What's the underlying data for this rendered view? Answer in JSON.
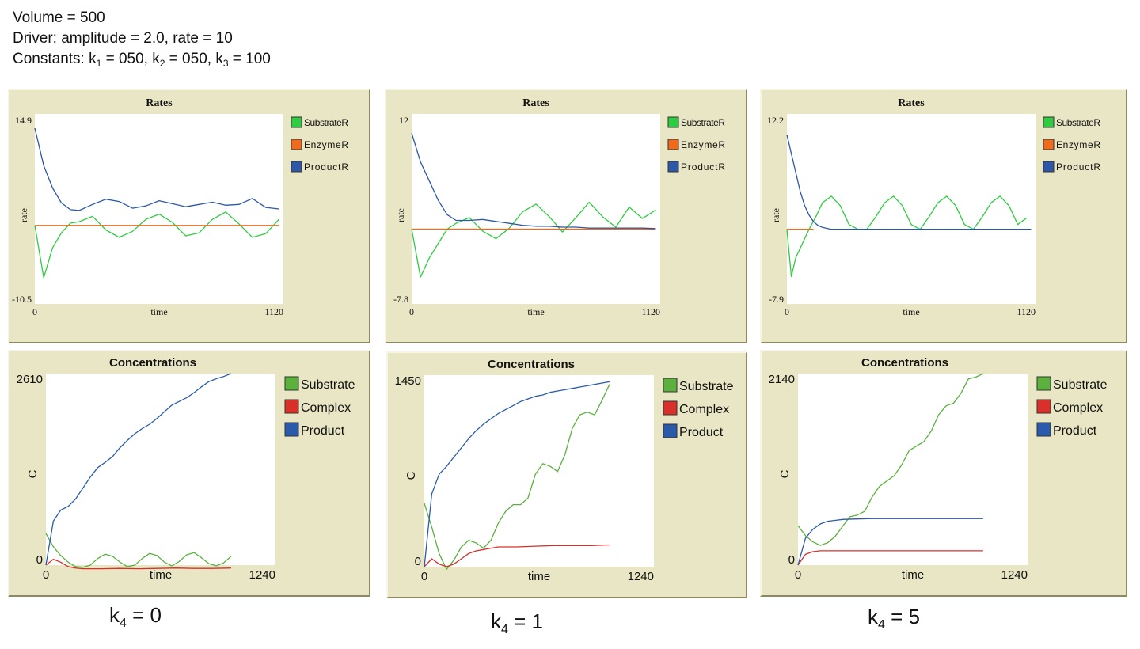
{
  "header": {
    "volume": "Volume = 500",
    "driver": "Driver: amplitude = 2.0, rate = 10",
    "constants_prefix": "Constants: k",
    "constants_mid1": " = 050, k",
    "constants_mid2": " = 050, k",
    "constants_end": " = 100",
    "sub1": "1",
    "sub2": "2",
    "sub3": "3"
  },
  "labels": [
    {
      "k": "k",
      "sub": "4",
      "value": " = 0"
    },
    {
      "k": "k",
      "sub": "4",
      "value": " = 1"
    },
    {
      "k": "k",
      "sub": "4",
      "value": " = 5"
    }
  ],
  "colors": {
    "panel_bg": "#e8e6c4",
    "green": "#2ecc40",
    "orange": "#f06a1a",
    "blue": "#2d57a8",
    "c_green": "#5bb03e",
    "c_red": "#d9302a",
    "c_blue": "#2a5bab"
  },
  "chart_data": [
    {
      "type": "line",
      "title": "Rates",
      "xlabel": "time",
      "ylabel": "rate",
      "xlim": [
        0,
        1120
      ],
      "ylim": [
        -10.5,
        14.9
      ],
      "x_ticks": [
        "0",
        "1120"
      ],
      "y_ticks": [
        "14.9",
        "-10.5"
      ],
      "legend": "right",
      "series": [
        {
          "name": "SubstrateR",
          "color": "#2ecc40",
          "x": [
            0,
            40,
            80,
            120,
            160,
            200,
            260,
            320,
            380,
            440,
            500,
            560,
            620,
            680,
            740,
            800,
            860,
            920,
            980,
            1040,
            1100
          ],
          "y": [
            0,
            -7,
            -3,
            -1,
            0.3,
            0.5,
            1.2,
            -0.6,
            -1.6,
            -0.8,
            0.8,
            1.5,
            0.4,
            -1.4,
            -1,
            0.8,
            1.8,
            0.2,
            -1.6,
            -1.1,
            0.8
          ]
        },
        {
          "name": "EnzymeR",
          "color": "#f06a1a",
          "x": [
            0,
            1100
          ],
          "y": [
            0,
            0
          ]
        },
        {
          "name": "ProductR",
          "color": "#2d57a8",
          "x": [
            0,
            40,
            80,
            120,
            160,
            200,
            260,
            320,
            380,
            440,
            500,
            560,
            620,
            680,
            740,
            800,
            860,
            920,
            980,
            1040,
            1100
          ],
          "y": [
            13,
            8,
            5,
            3,
            2.1,
            2,
            2.8,
            3.5,
            3.2,
            2.3,
            2.6,
            3.3,
            2.9,
            2.5,
            2.8,
            3.1,
            2.7,
            2.8,
            3.6,
            2.4,
            2.2
          ]
        }
      ]
    },
    {
      "type": "line",
      "title": "Rates",
      "xlabel": "time",
      "ylabel": "rate",
      "xlim": [
        0,
        1120
      ],
      "ylim": [
        -7.8,
        12
      ],
      "x_ticks": [
        "0",
        "1120"
      ],
      "y_ticks": [
        "12",
        "-7.8"
      ],
      "legend": "right",
      "series": [
        {
          "name": "SubstrateR",
          "color": "#2ecc40",
          "x": [
            0,
            40,
            80,
            120,
            160,
            200,
            260,
            320,
            380,
            440,
            500,
            560,
            620,
            680,
            740,
            800,
            860,
            920,
            980,
            1040,
            1100
          ],
          "y": [
            0,
            -5,
            -3,
            -1.5,
            0,
            0.6,
            1.2,
            -0.2,
            -1,
            0.1,
            1.8,
            2.6,
            1.3,
            -0.3,
            1.2,
            2.8,
            1.3,
            0.2,
            2.3,
            1.1,
            2
          ]
        },
        {
          "name": "EnzymeR",
          "color": "#f06a1a",
          "x": [
            0,
            1100
          ],
          "y": [
            0,
            0
          ]
        },
        {
          "name": "ProductR",
          "color": "#2d57a8",
          "x": [
            0,
            40,
            80,
            120,
            160,
            200,
            260,
            320,
            380,
            440,
            500,
            560,
            620,
            680,
            740,
            800,
            860,
            920,
            980,
            1040,
            1100
          ],
          "y": [
            10,
            7,
            5,
            3,
            1.5,
            0.9,
            0.9,
            1,
            0.8,
            0.6,
            0.4,
            0.3,
            0.3,
            0.2,
            0.2,
            0.1,
            0.1,
            0.1,
            0.1,
            0.1,
            0.05
          ]
        }
      ]
    },
    {
      "type": "line",
      "title": "Rates",
      "xlabel": "time",
      "ylabel": "rate",
      "xlim": [
        0,
        1120
      ],
      "ylim": [
        -7.9,
        12.2
      ],
      "x_ticks": [
        "0",
        "1120"
      ],
      "y_ticks": [
        "12.2",
        "-7.9"
      ],
      "legend": "right",
      "series": [
        {
          "name": "SubstrateR",
          "color": "#2ecc40",
          "x": [
            0,
            20,
            40,
            60,
            80,
            100,
            130,
            160,
            200,
            240,
            280,
            320,
            360,
            400,
            440,
            480,
            520,
            560,
            600,
            640,
            680,
            720,
            760,
            800,
            840,
            880,
            920,
            960,
            1000,
            1040,
            1080
          ],
          "y": [
            0,
            -5,
            -3,
            -2,
            -1,
            0,
            1.3,
            2.8,
            3.5,
            2.5,
            0.5,
            0,
            0,
            1.3,
            2.8,
            3.5,
            2.5,
            0.5,
            0,
            1.3,
            2.8,
            3.5,
            2.5,
            0.5,
            0,
            1.3,
            2.8,
            3.5,
            2.5,
            0.5,
            1.2
          ]
        },
        {
          "name": "EnzymeR",
          "color": "#f06a1a",
          "x": [
            0,
            120
          ],
          "y": [
            0,
            0
          ]
        },
        {
          "name": "ProductR",
          "color": "#2d57a8",
          "x": [
            0,
            20,
            40,
            60,
            80,
            100,
            120,
            140,
            160,
            200,
            1100
          ],
          "y": [
            10,
            8,
            6,
            4,
            2.5,
            1.5,
            0.8,
            0.4,
            0.2,
            0,
            0
          ]
        }
      ]
    },
    {
      "type": "line",
      "title": "Concentrations",
      "xlabel": "time",
      "ylabel": "C",
      "xlim": [
        0,
        1240
      ],
      "ylim": [
        0,
        2610
      ],
      "x_ticks": [
        "0",
        "time",
        "1240"
      ],
      "y_ticks": [
        "2610",
        "0"
      ],
      "legend": "right",
      "series": [
        {
          "name": "Substrate",
          "color": "#5bb03e",
          "x": [
            0,
            40,
            80,
            120,
            160,
            200,
            240,
            280,
            320,
            360,
            400,
            440,
            480,
            520,
            560,
            600,
            640,
            680,
            720,
            760,
            800,
            840,
            880,
            920,
            960,
            1000
          ],
          "y": [
            430,
            250,
            130,
            40,
            -20,
            -30,
            0,
            90,
            150,
            120,
            40,
            -20,
            0,
            90,
            160,
            130,
            40,
            -10,
            50,
            140,
            170,
            100,
            20,
            -10,
            30,
            120
          ]
        },
        {
          "name": "Complex",
          "color": "#d9302a",
          "x": [
            0,
            40,
            80,
            120,
            160,
            200,
            300,
            400,
            500,
            600,
            700,
            800,
            900,
            1000
          ],
          "y": [
            0,
            80,
            40,
            -20,
            -40,
            -50,
            -50,
            -45,
            -50,
            -45,
            -40,
            -45,
            -45,
            -40
          ]
        },
        {
          "name": "Product",
          "color": "#2a5bab",
          "x": [
            0,
            40,
            80,
            120,
            160,
            200,
            240,
            280,
            320,
            360,
            400,
            440,
            480,
            520,
            560,
            600,
            640,
            680,
            720,
            760,
            800,
            840,
            880,
            920,
            960,
            1000
          ],
          "y": [
            0,
            600,
            750,
            800,
            900,
            1050,
            1200,
            1330,
            1400,
            1480,
            1600,
            1700,
            1790,
            1860,
            1920,
            2000,
            2090,
            2180,
            2230,
            2280,
            2350,
            2430,
            2500,
            2540,
            2570,
            2610
          ]
        }
      ]
    },
    {
      "type": "line",
      "title": "Concentrations",
      "xlabel": "time",
      "ylabel": "C",
      "xlim": [
        0,
        1240
      ],
      "ylim": [
        0,
        1450
      ],
      "x_ticks": [
        "0",
        "time",
        "1240"
      ],
      "y_ticks": [
        "1450",
        "0"
      ],
      "legend": "right",
      "series": [
        {
          "name": "Substrate",
          "color": "#5bb03e",
          "x": [
            0,
            40,
            80,
            120,
            160,
            200,
            240,
            280,
            320,
            360,
            400,
            440,
            480,
            520,
            560,
            600,
            640,
            680,
            720,
            760,
            800,
            840,
            880,
            920,
            960,
            1000
          ],
          "y": [
            480,
            300,
            100,
            -20,
            50,
            150,
            200,
            180,
            140,
            200,
            330,
            420,
            470,
            470,
            520,
            700,
            780,
            760,
            720,
            850,
            1050,
            1150,
            1170,
            1150,
            1260,
            1380
          ]
        },
        {
          "name": "Complex",
          "color": "#d9302a",
          "x": [
            0,
            40,
            80,
            120,
            160,
            200,
            240,
            280,
            320,
            360,
            400,
            500,
            600,
            700,
            800,
            900,
            1000
          ],
          "y": [
            0,
            60,
            20,
            0,
            20,
            60,
            100,
            120,
            130,
            140,
            150,
            150,
            155,
            160,
            160,
            160,
            165
          ]
        },
        {
          "name": "Product",
          "color": "#2a5bab",
          "x": [
            0,
            40,
            80,
            120,
            160,
            200,
            240,
            280,
            320,
            360,
            400,
            440,
            480,
            520,
            560,
            600,
            640,
            680,
            720,
            760,
            800,
            840,
            880,
            920,
            960,
            1000
          ],
          "y": [
            0,
            550,
            700,
            760,
            830,
            900,
            970,
            1030,
            1080,
            1120,
            1160,
            1190,
            1220,
            1250,
            1270,
            1290,
            1300,
            1320,
            1330,
            1340,
            1350,
            1360,
            1370,
            1380,
            1390,
            1400
          ]
        }
      ]
    },
    {
      "type": "line",
      "title": "Concentrations",
      "xlabel": "time",
      "ylabel": "C",
      "xlim": [
        0,
        1240
      ],
      "ylim": [
        0,
        2140
      ],
      "x_ticks": [
        "0",
        "time",
        "1240"
      ],
      "y_ticks": [
        "2140",
        "0"
      ],
      "legend": "right",
      "series": [
        {
          "name": "Substrate",
          "color": "#5bb03e",
          "x": [
            0,
            40,
            80,
            120,
            160,
            200,
            240,
            280,
            320,
            360,
            400,
            440,
            480,
            520,
            560,
            600,
            640,
            680,
            720,
            760,
            800,
            840,
            880,
            920,
            960,
            1000
          ],
          "y": [
            440,
            330,
            260,
            220,
            250,
            320,
            430,
            540,
            560,
            600,
            760,
            880,
            940,
            1000,
            1120,
            1280,
            1330,
            1380,
            1500,
            1680,
            1780,
            1810,
            1920,
            2080,
            2100,
            2140
          ]
        },
        {
          "name": "Complex",
          "color": "#d9302a",
          "x": [
            0,
            40,
            80,
            120,
            160,
            200,
            400,
            600,
            800,
            1000
          ],
          "y": [
            0,
            120,
            150,
            160,
            160,
            160,
            160,
            160,
            160,
            160
          ]
        },
        {
          "name": "Product",
          "color": "#2a5bab",
          "x": [
            0,
            40,
            80,
            120,
            160,
            200,
            240,
            300,
            400,
            600,
            800,
            1000
          ],
          "y": [
            0,
            300,
            400,
            460,
            490,
            500,
            510,
            515,
            520,
            520,
            520,
            520
          ]
        }
      ]
    }
  ]
}
